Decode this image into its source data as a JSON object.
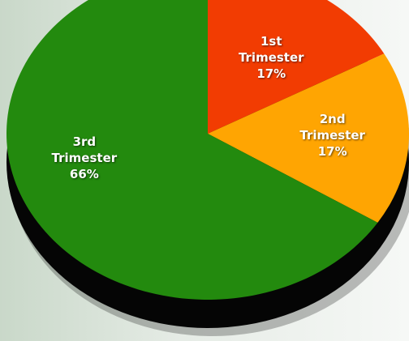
{
  "chart_data": {
    "type": "pie",
    "categories": [
      "1st Trimester",
      "2nd Trimester",
      "3rd Trimester"
    ],
    "values": [
      17,
      17,
      66
    ],
    "value_labels": [
      "17%",
      "17%",
      "66%"
    ],
    "colors": [
      "#f23c02",
      "#ffa502",
      "#238a0e"
    ]
  }
}
